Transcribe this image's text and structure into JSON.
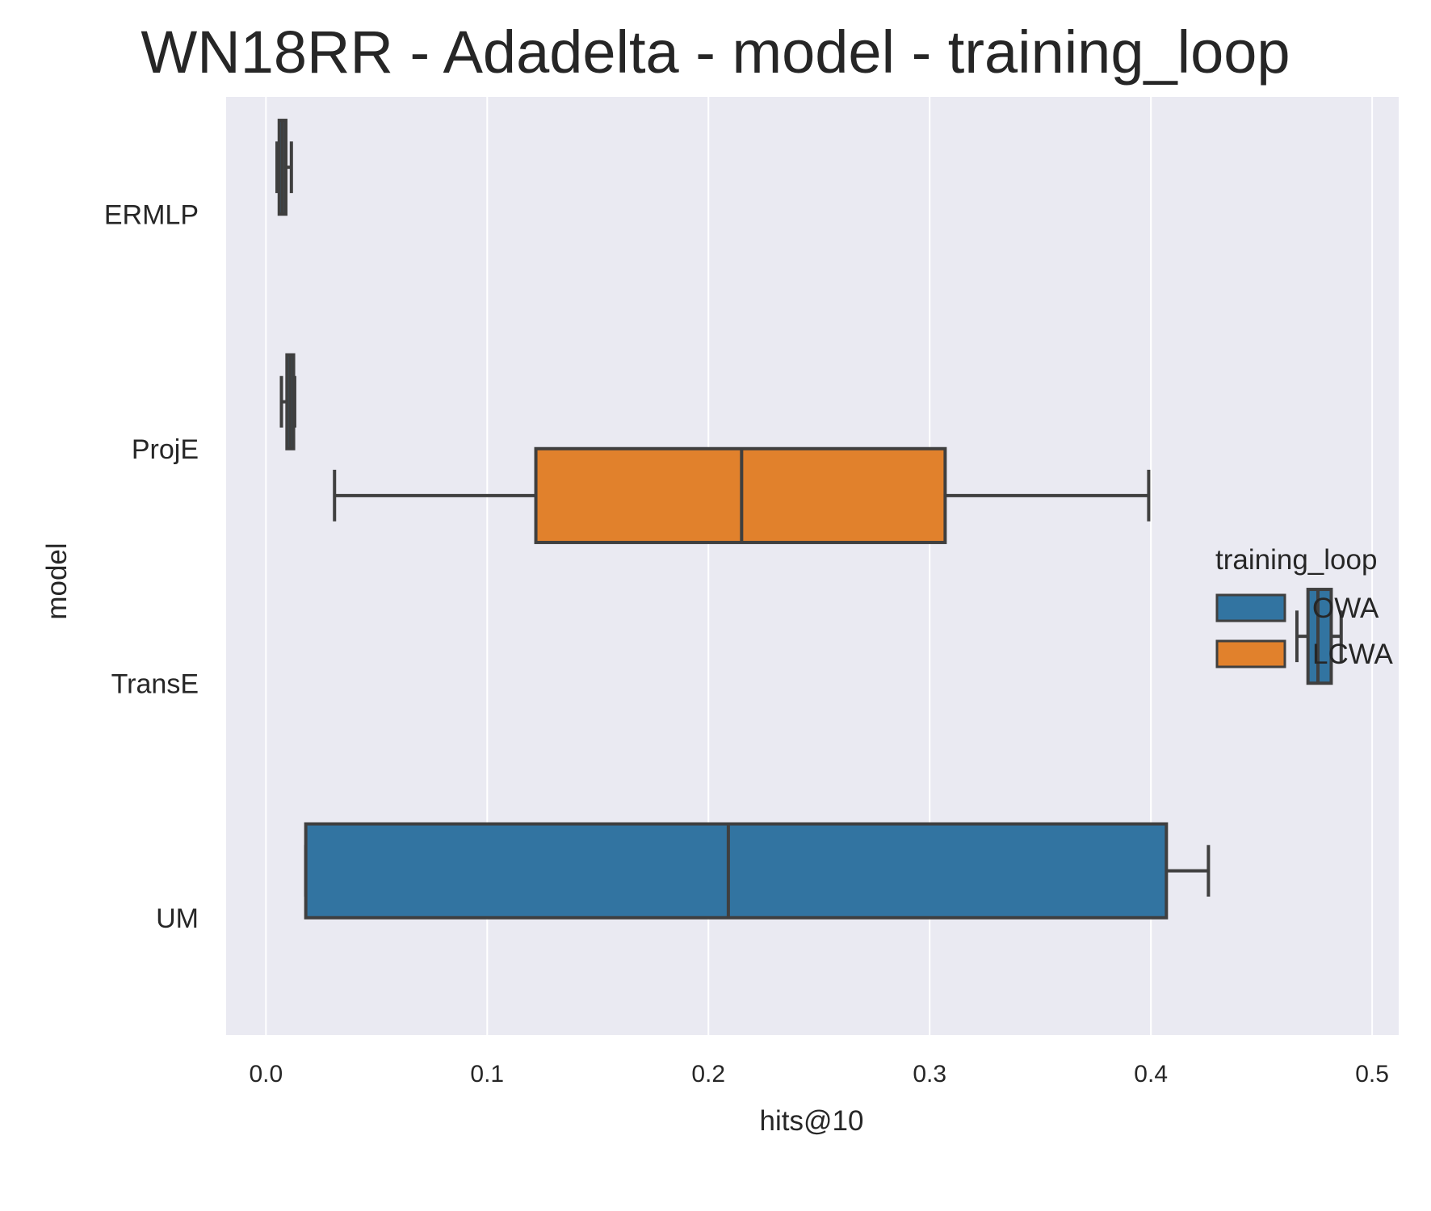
{
  "chart_data": {
    "type": "box",
    "title": "WN18RR - Adadelta - model - training_loop",
    "xlabel": "hits@10",
    "ylabel": "model",
    "xlim": [
      -0.018,
      0.512
    ],
    "xticks": [
      0.0,
      0.1,
      0.2,
      0.3,
      0.4,
      0.5
    ],
    "xtick_labels": [
      "0.0",
      "0.1",
      "0.2",
      "0.3",
      "0.4",
      "0.5"
    ],
    "categories": [
      "ERMLP",
      "ProjE",
      "TransE",
      "UM"
    ],
    "grid": true,
    "legend": {
      "title": "training_loop",
      "placement": "center-right",
      "entries": [
        {
          "name": "OWA",
          "color": "#3274a1"
        },
        {
          "name": "LCWA",
          "color": "#e1812c"
        }
      ]
    },
    "series": [
      {
        "name": "OWA",
        "color": "#3274a1",
        "boxes": [
          {
            "category": "ERMLP",
            "whislo": 0.005,
            "q1": 0.006,
            "median": 0.0075,
            "q3": 0.009,
            "whishi": 0.0115
          },
          {
            "category": "ProjE",
            "whislo": 0.007,
            "q1": 0.0095,
            "median": 0.011,
            "q3": 0.0125,
            "whishi": 0.013
          },
          {
            "category": "TransE",
            "whislo": 0.466,
            "q1": 0.471,
            "median": 0.4755,
            "q3": 0.4815,
            "whishi": 0.486
          },
          {
            "category": "UM",
            "whislo": 0.018,
            "q1": 0.018,
            "median": 0.209,
            "q3": 0.407,
            "whishi": 0.426
          }
        ]
      },
      {
        "name": "LCWA",
        "color": "#e1812c",
        "boxes": [
          {
            "category": "ProjE",
            "whislo": 0.031,
            "q1": 0.122,
            "median": 0.215,
            "q3": 0.307,
            "whishi": 0.399
          }
        ]
      }
    ]
  },
  "style": {
    "plot_bg": "#eaeaf2",
    "grid_color": "#ffffff",
    "line_color": "#3f3f3f",
    "text_color": "#262626"
  }
}
